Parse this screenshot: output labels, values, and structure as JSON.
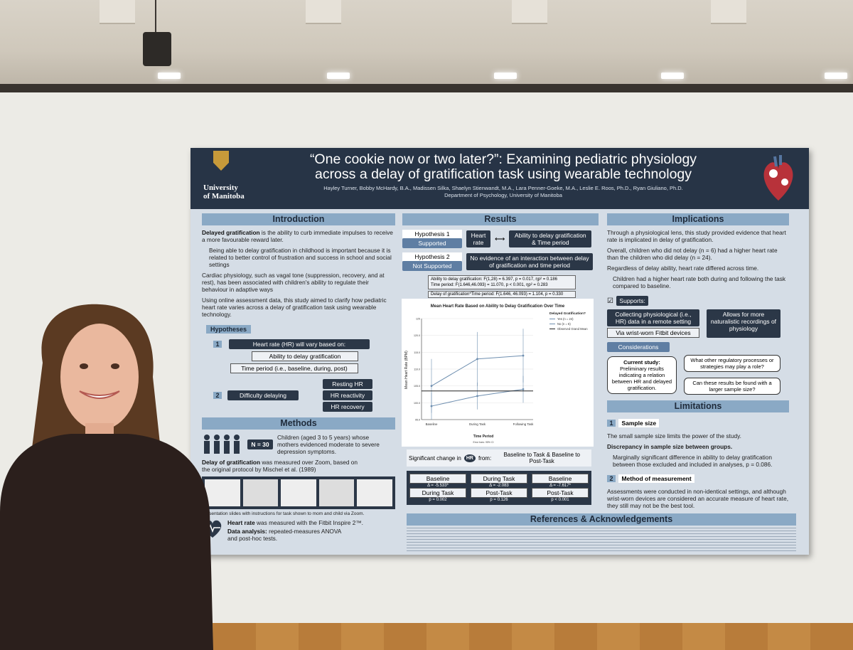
{
  "poster": {
    "title_line1": "“One cookie now or two later?”: Examining pediatric physiology",
    "title_line2": "across a delay of gratification task using wearable technology",
    "authors": "Hayley Turner, Bobby McHardy, B.A., Madissen Silka, Shaelyn Stienwandt, M.A., Lara Penner-Goeke, M.A., Leslie E. Roos, Ph.D., Ryan Giuliano, Ph.D.",
    "department": "Department of Psychology, University of Manitoba",
    "logo_line1": "University",
    "logo_line2": "of Manitoba"
  },
  "intro": {
    "heading": "Introduction",
    "p1_bold": "Delayed gratification",
    "p1": " is the ability to curb immediate impulses to receive a more favourable reward later.",
    "bullet1": "Being able to delay gratification in childhood is important because it is related to better control of frustration and success in school and social settings",
    "p2": "Cardiac physiology, such as vagal tone (suppression, recovery, and at rest), has been associated with children's ability to regulate their behaviour in adaptive ways",
    "p3": "Using online assessment data, this study aimed to clarify how pediatric heart rate varies across a delay of gratification task using wearable technology.",
    "hypotheses_label": "Hypotheses",
    "h1_num": "1",
    "h1": "Heart rate (HR) will vary based on:",
    "h1a": "Ability to delay gratification",
    "h1b": "Time period (i.e., baseline, during, post)",
    "h2_num": "2",
    "h2": "Difficulty delaying",
    "h2a": "Resting HR",
    "h2b": "HR reactivity",
    "h2c": "HR recovery"
  },
  "methods": {
    "heading": "Methods",
    "n": "N = 30",
    "participants": "Children (aged 3 to 5 years) whose mothers evidenced moderate to severe depression symptoms.",
    "dog_bold": "Delay of gratification",
    "dog": " was measured over Zoom, based on the original protocol by Mischel et al. (1989)",
    "slides_caption": "Presentation slides with instructions for task shown to mom and child via Zoom.",
    "hr_bold": "Heart rate",
    "hr": " was measured with the Fitbit Inspire 2™.",
    "analysis_bold": "Data analysis:",
    "analysis": " repeated-measures ANOVA and post-hoc tests."
  },
  "results": {
    "heading": "Results",
    "hyp1": "Hypothesis 1",
    "hyp1_status": "Supported",
    "hyp1_left": "Heart rate",
    "hyp1_right": "Ability to delay gratification & Time period",
    "hyp2": "Hypothesis 2",
    "hyp2_status": "Not Supported",
    "hyp2_text": "No evidence of an interaction between delay of gratification and time period",
    "stat1": "Ability to delay gratification: F(1,28) = 6.397, p = 0.017, ηp² = 0.186",
    "stat2": "Time period: F(1.646,46.093) = 11.070, p < 0.001, ηp² = 0.283",
    "stat3": "Delay of gratification*Time period: F(1.646, 46.093) = 1.104, p = 0.330",
    "sig_text": "Significant change in",
    "sig_hr": "HR",
    "sig_from": "from:",
    "sig_right": "Baseline to Task & Baseline to Post-Task",
    "c1_top": "Baseline",
    "c1_bottom": "During Task",
    "c1_delta": "Δ = -5.533*",
    "c1_p": "p = 0.002",
    "c2_top": "During Task",
    "c2_bottom": "Post-Task",
    "c2_delta": "Δ = -2.083",
    "c2_p": "p = 0.126",
    "c3_top": "Baseline",
    "c3_bottom": "Post-Task",
    "c3_delta": "Δ = -7.617*",
    "c3_p": "p < 0.001"
  },
  "implications": {
    "heading": "Implications",
    "p1": "Through a physiological lens, this study provided evidence that heart rate is implicated in delay of gratification.",
    "p2": "Overall, children who did not delay (n = 6) had a higher heart rate than the children who did delay (n = 24).",
    "p3": "Regardless of delay ability, heart rate differed across time.",
    "bullet": "Children had a higher heart rate both during and following the task compared to baseline.",
    "supports": "Supports:",
    "sup1": "Collecting physiological (i.e., HR) data in a remote setting",
    "sup1b": "Via wrist-worn Fitbit devices",
    "sup2": "Allows for more naturalistic recordings of physiology",
    "considerations": "Considerations",
    "current": "Current study:",
    "current_text": "Preliminary results indicating a relation between HR and delayed gratification.",
    "q1": "What other regulatory processes or strategies may play a role?",
    "q2": "Can these results be found with a larger sample size?"
  },
  "limitations": {
    "heading": "Limitations",
    "l1_num": "1",
    "l1": "Sample size",
    "l1_text": "The small sample size limits the power of the study.",
    "l1_sub": "Discrepancy in sample size between groups.",
    "l1_bullet": "Marginally significant difference in ability to delay gratification between those excluded and included in analyses, p = 0.086.",
    "l2_num": "2",
    "l2": "Method of measurement",
    "l2_text": "Assessments were conducted in non-identical settings, and although wrist-worn devices are considered an accurate measure of heart rate, they still may not be the best tool."
  },
  "references": {
    "heading": "References & Acknowledgements"
  },
  "chart_data": {
    "type": "line",
    "title": "Mean Heart Rate Based on Ability to Delay Gratification Over Time",
    "xlabel": "Time Period",
    "ylabel": "Mean Heart Rate (BPM)",
    "categories": [
      "Baseline",
      "During Task",
      "Following Task"
    ],
    "ylim": [
      95,
      125
    ],
    "yticks": [
      "125",
      "120.0",
      "115.0",
      "110.0",
      "105.0",
      "100.0",
      "95.0"
    ],
    "legend_title": "Delayed Gratification?",
    "legend_position": "top-right",
    "error_note": "Error bars: 95% CI",
    "series": [
      {
        "name": "Yes (n = 24)",
        "values": [
          99,
          102,
          104
        ],
        "color": "#6f8fb0"
      },
      {
        "name": "No (n = 6)",
        "values": [
          105,
          113,
          114
        ],
        "color": "#6f8fb0"
      },
      {
        "name": "Observed Grand Mean",
        "values": [
          103.5,
          103.5,
          103.5
        ],
        "color": "#222222"
      }
    ]
  }
}
